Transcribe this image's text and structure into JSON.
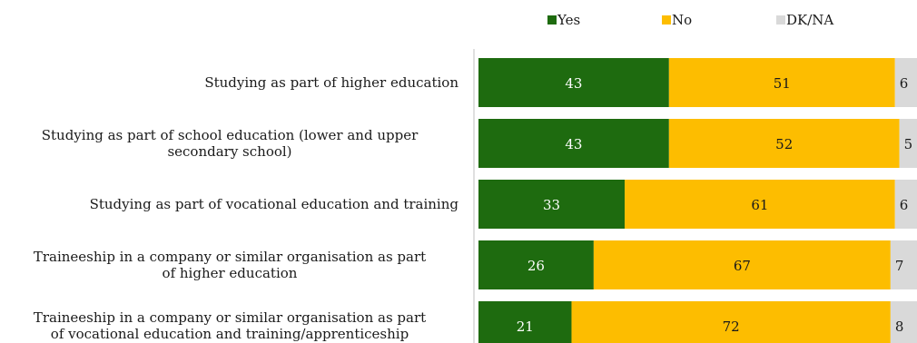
{
  "chart_data": {
    "type": "bar",
    "orientation": "horizontal",
    "stacked": true,
    "categories": [
      [
        "Studying as part of higher education"
      ],
      [
        "Studying as part of school education (lower and upper",
        "secondary school)"
      ],
      [
        "Studying as part of vocational education and training"
      ],
      [
        "Traineeship in a company or similar organisation as part",
        "of higher education"
      ],
      [
        "Traineeship in a company or similar organisation as part",
        "of vocational education and training/apprenticeship"
      ]
    ],
    "series": [
      {
        "name": "Yes",
        "color": "#1e6b0f",
        "label_color": "#ffffff",
        "values": [
          43,
          43,
          33,
          26,
          21
        ]
      },
      {
        "name": "No",
        "color": "#fdbd00",
        "label_color": "#1a1a1a",
        "values": [
          51,
          52,
          61,
          67,
          72
        ]
      },
      {
        "name": "DK/NA",
        "color": "#d9d9d9",
        "label_color": "#1a1a1a",
        "values": [
          6,
          5,
          6,
          7,
          8
        ]
      }
    ],
    "xlim": [
      0,
      100
    ],
    "legend_position": "top",
    "grid": false,
    "title": "",
    "xlabel": "",
    "ylabel": ""
  }
}
